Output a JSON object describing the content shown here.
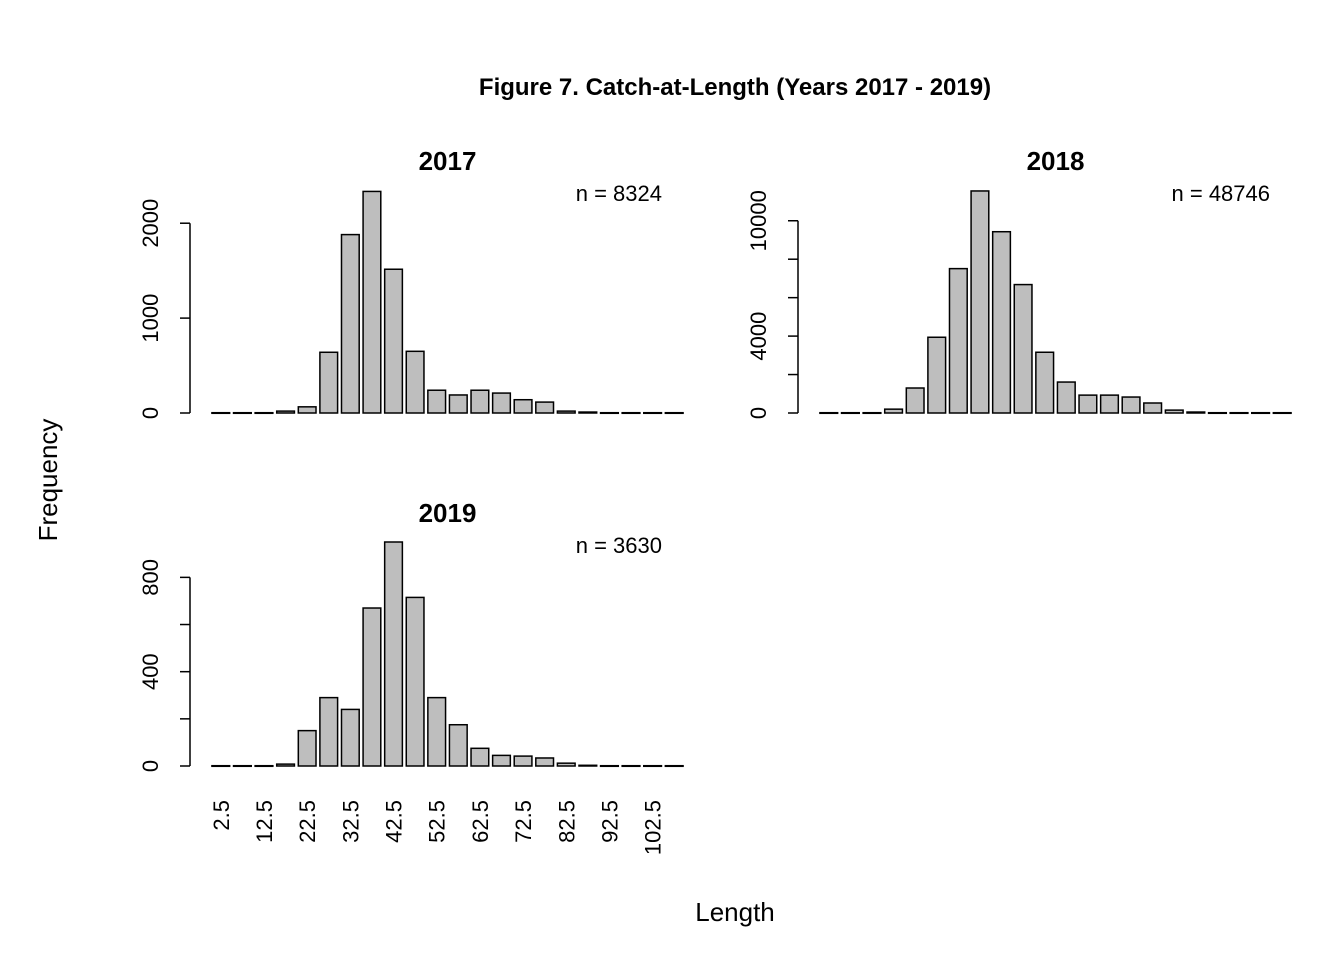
{
  "title": "Figure 7. Catch-at-Length (Years 2017 - 2019)",
  "x_label": "Length",
  "y_label": "Frequency",
  "chart_data": [
    {
      "type": "bar",
      "title": "2017",
      "annotation": "n =  8324",
      "color": "#bebebe",
      "values": [
        0,
        0,
        0,
        20,
        65,
        640,
        1880,
        2335,
        1515,
        650,
        240,
        190,
        240,
        210,
        140,
        115,
        20,
        10,
        0,
        0,
        0,
        0
      ],
      "ylim": [
        0,
        2350
      ],
      "yticks": [
        0,
        1000,
        2000
      ]
    },
    {
      "type": "bar",
      "title": "2018",
      "annotation": "n =  48746",
      "color": "#bebebe",
      "values": [
        0,
        0,
        0,
        200,
        1300,
        3940,
        7510,
        11550,
        9430,
        6680,
        3160,
        1610,
        930,
        930,
        830,
        520,
        150,
        50,
        0,
        0,
        0,
        0
      ],
      "ylim": [
        0,
        11600
      ],
      "yticks": [
        0,
        {
          "value": 2000,
          "label": null
        },
        4000,
        {
          "value": 6000,
          "label": null
        },
        {
          "value": 8000,
          "label": null
        },
        10000
      ]
    },
    {
      "type": "bar",
      "title": "2019",
      "annotation": "n =  3630",
      "color": "#bebebe",
      "categories": [
        "2.5",
        null,
        "12.5",
        null,
        "22.5",
        null,
        "32.5",
        null,
        "42.5",
        null,
        "52.5",
        null,
        "62.5",
        null,
        "72.5",
        null,
        "82.5",
        null,
        "92.5",
        null,
        "102.5",
        null
      ],
      "values": [
        0,
        0,
        0,
        8,
        150,
        290,
        240,
        670,
        950,
        715,
        290,
        175,
        75,
        45,
        42,
        34,
        12,
        3,
        0,
        0,
        0,
        0
      ],
      "ylim": [
        0,
        950
      ],
      "yticks": [
        0,
        {
          "value": 200,
          "label": null
        },
        400,
        {
          "value": 600,
          "label": null
        },
        800
      ]
    }
  ]
}
